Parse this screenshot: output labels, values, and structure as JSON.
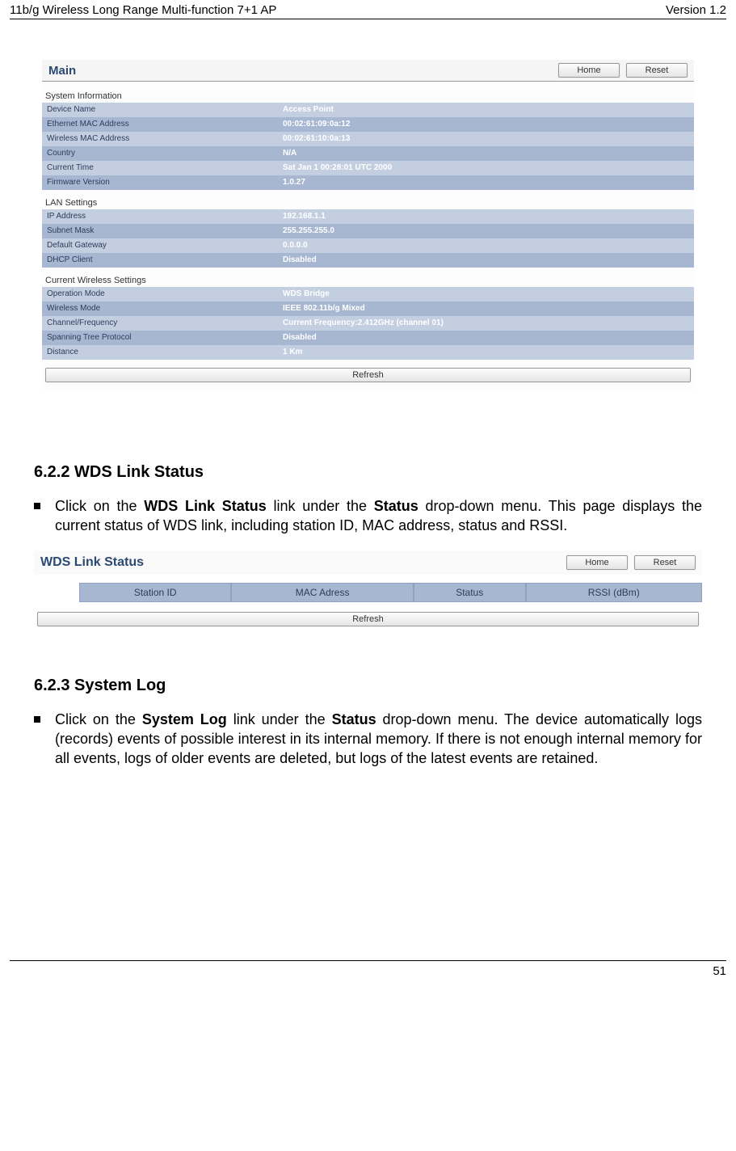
{
  "header": {
    "left": "11b/g Wireless Long Range Multi-function 7+1 AP",
    "right": "Version 1.2"
  },
  "footer": {
    "page_number": "51"
  },
  "main_panel": {
    "title": "Main",
    "buttons": {
      "home": "Home",
      "reset": "Reset"
    },
    "refresh_label": "Refresh",
    "sections": {
      "system_info": {
        "heading": "System Information",
        "rows": [
          {
            "k": "Device Name",
            "v": "Access Point"
          },
          {
            "k": "Ethernet MAC Address",
            "v": "00:02:61:09:0a:12"
          },
          {
            "k": "Wireless MAC Address",
            "v": "00:02:61:10:0a:13"
          },
          {
            "k": "Country",
            "v": "N/A"
          },
          {
            "k": "Current Time",
            "v": "Sat Jan 1 00:28:01 UTC 2000"
          },
          {
            "k": "Firmware Version",
            "v": "1.0.27"
          }
        ]
      },
      "lan_settings": {
        "heading": "LAN Settings",
        "rows": [
          {
            "k": "IP Address",
            "v": "192.168.1.1"
          },
          {
            "k": "Subnet Mask",
            "v": "255.255.255.0"
          },
          {
            "k": "Default Gateway",
            "v": "0.0.0.0"
          },
          {
            "k": "DHCP Client",
            "v": "Disabled"
          }
        ]
      },
      "wireless": {
        "heading": "Current Wireless Settings",
        "rows": [
          {
            "k": "Operation Mode",
            "v": "WDS Bridge"
          },
          {
            "k": "Wireless Mode",
            "v": "IEEE 802.11b/g Mixed"
          },
          {
            "k": "Channel/Frequency",
            "v": "Current Frequency:2.412GHz (channel 01)"
          },
          {
            "k": "Spanning Tree Protocol",
            "v": "Disabled"
          },
          {
            "k": "Distance",
            "v": "1 Km"
          }
        ]
      }
    },
    "colors": {
      "row_even_bg": "#c3cfe1",
      "row_odd_bg": "#a7b7d1",
      "title_color": "#2b4a73",
      "value_color": "#ffffff"
    }
  },
  "section_622": {
    "heading": "6.2.2   WDS Link Status",
    "para_prefix": "Click on the ",
    "para_link1": "WDS Link Status",
    "para_mid": " link under the ",
    "para_link2": "Status",
    "para_suffix": " drop-down menu. This page displays the current status of WDS link, including station ID, MAC address, status and RSSI."
  },
  "wds_panel": {
    "title": "WDS Link Status",
    "buttons": {
      "home": "Home",
      "reset": "Reset"
    },
    "columns": [
      "Station ID",
      "MAC Adress",
      "Status",
      "RSSI (dBm)"
    ],
    "refresh_label": "Refresh"
  },
  "section_623": {
    "heading": "6.2.3   System Log",
    "para_prefix": "Click on the ",
    "para_link1": "System Log",
    "para_mid": " link under the ",
    "para_link2": "Status",
    "para_suffix": " drop-down menu. The device automatically logs (records) events of possible interest in its internal memory. If there is not enough internal memory for all events, logs of older events are deleted, but logs of the latest events are retained."
  }
}
